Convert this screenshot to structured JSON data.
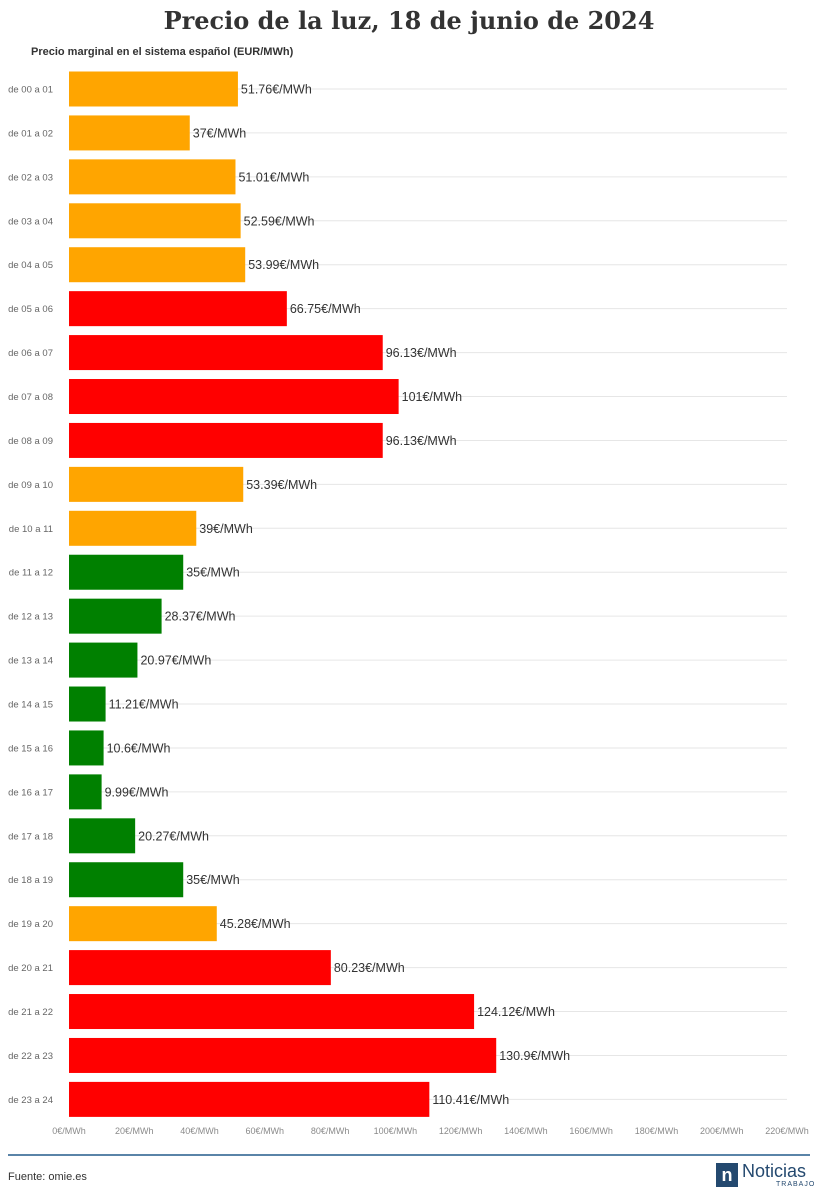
{
  "chart_data": {
    "type": "bar",
    "orientation": "horizontal",
    "title": "Precio de la luz, 18 de junio de 2024",
    "subtitle": "Precio marginal en el sistema español (EUR/MWh)",
    "categories": [
      "de 00 a 01",
      "de 01 a 02",
      "de 02 a 03",
      "de 03 a 04",
      "de 04 a 05",
      "de 05 a 06",
      "de 06 a 07",
      "de 07 a 08",
      "de 08 a 09",
      "de 09 a 10",
      "de 10 a 11",
      "de 11 a 12",
      "de 12 a 13",
      "de 13 a 14",
      "de 14 a 15",
      "de 15 a 16",
      "de 16 a 17",
      "de 17 a 18",
      "de 18 a 19",
      "de 19 a 20",
      "de 20 a 21",
      "de 21 a 22",
      "de 22 a 23",
      "de 23 a 24"
    ],
    "values": [
      51.76,
      37,
      51.01,
      52.59,
      53.99,
      66.75,
      96.13,
      101,
      96.13,
      53.39,
      39,
      35,
      28.37,
      20.97,
      11.21,
      10.6,
      9.99,
      20.27,
      35,
      45.28,
      80.23,
      124.12,
      130.9,
      110.41
    ],
    "value_labels": [
      "51.76€/MWh",
      "37€/MWh",
      "51.01€/MWh",
      "52.59€/MWh",
      "53.99€/MWh",
      "66.75€/MWh",
      "96.13€/MWh",
      "101€/MWh",
      "96.13€/MWh",
      "53.39€/MWh",
      "39€/MWh",
      "35€/MWh",
      "28.37€/MWh",
      "20.97€/MWh",
      "11.21€/MWh",
      "10.6€/MWh",
      "9.99€/MWh",
      "20.27€/MWh",
      "35€/MWh",
      "45.28€/MWh",
      "80.23€/MWh",
      "124.12€/MWh",
      "130.9€/MWh",
      "110.41€/MWh"
    ],
    "bar_colors": [
      "#ffa500",
      "#ffa500",
      "#ffa500",
      "#ffa500",
      "#ffa500",
      "#ff0000",
      "#ff0000",
      "#ff0000",
      "#ff0000",
      "#ffa500",
      "#ffa500",
      "#008000",
      "#008000",
      "#008000",
      "#008000",
      "#008000",
      "#008000",
      "#008000",
      "#008000",
      "#ffa500",
      "#ff0000",
      "#ff0000",
      "#ff0000",
      "#ff0000"
    ],
    "xlim": [
      0,
      220
    ],
    "xticks": [
      0,
      20,
      40,
      60,
      80,
      100,
      120,
      140,
      160,
      180,
      200,
      220
    ],
    "xtick_labels": [
      "0€/MWh",
      "20€/MWh",
      "40€/MWh",
      "60€/MWh",
      "80€/MWh",
      "100€/MWh",
      "120€/MWh",
      "140€/MWh",
      "160€/MWh",
      "180€/MWh",
      "200€/MWh",
      "220€/MWh"
    ],
    "grid": true,
    "legend": "none"
  },
  "footer": {
    "source": "Fuente: omie.es",
    "logo_mark": "n",
    "logo_word": "Noticias",
    "logo_sub": "TRABAJO"
  },
  "colors": {
    "orange": "#ffa500",
    "red": "#ff0000",
    "green": "#008000",
    "brand": "#24496f"
  }
}
